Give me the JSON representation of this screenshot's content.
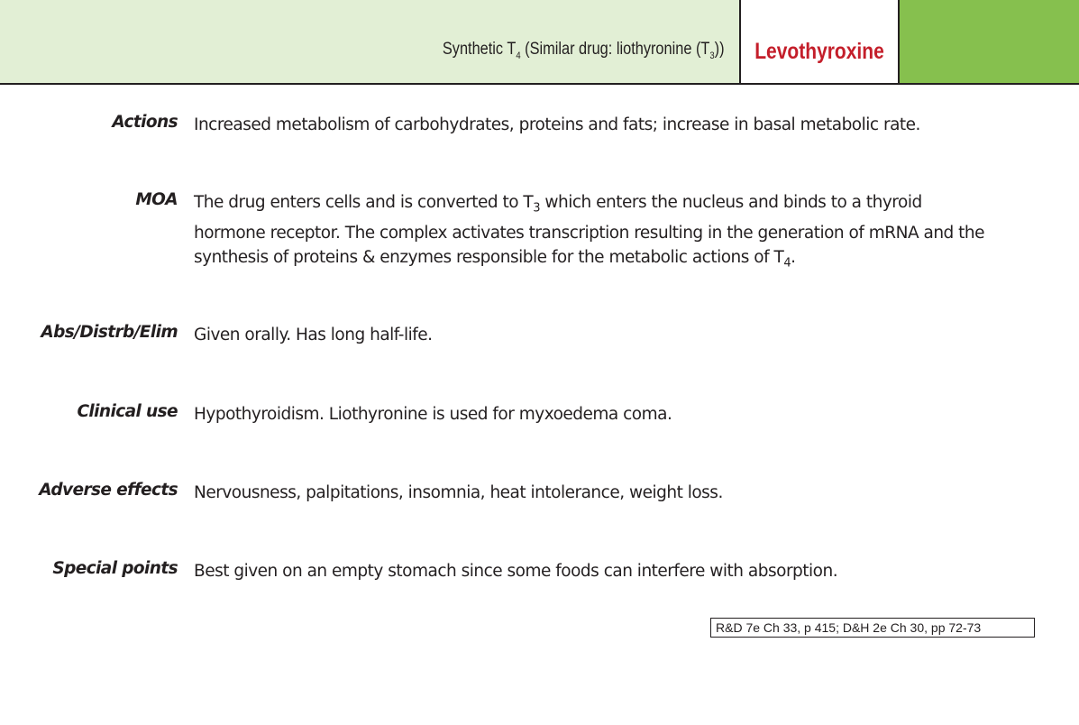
{
  "header": {
    "subtitle_pre": "Synthetic T",
    "subtitle_sub1": "4",
    "subtitle_mid": " (Similar drug: liothyronine (T",
    "subtitle_sub2": "3",
    "subtitle_post": "))",
    "drug_name": "Levothyroxine",
    "colors": {
      "header_bg": "#e2efd5",
      "tab_green": "#86c04e",
      "drug_name_red": "#c41e2a"
    }
  },
  "sections": {
    "actions": {
      "label": "Actions",
      "text": "Increased metabolism of carbohydrates, proteins and fats; increase in basal metabolic rate."
    },
    "moa": {
      "label": "MOA",
      "text_1": "The drug enters cells and is converted to T",
      "sub_1": "3",
      "text_2": " which enters the nucleus and binds to a thyroid hormone receptor. The complex activates transcription resulting in the generation of mRNA and the synthesis of proteins & enzymes responsible for the metabolic actions of T",
      "sub_2": "4",
      "text_3": "."
    },
    "abs": {
      "label": "Abs/Distrb/Elim",
      "text": "Given orally. Has long half-life."
    },
    "clinical": {
      "label": "Clinical use",
      "text": "Hypothyroidism. Liothyronine is used for myxoedema coma."
    },
    "adverse": {
      "label": "Adverse effects",
      "text": "Nervousness, palpitations, insomnia, heat intolerance, weight loss."
    },
    "special": {
      "label": "Special points",
      "text": "Best given on an empty stomach since some foods can interfere with absorption."
    }
  },
  "reference": "R&D 7e Ch 33, p 415; D&H 2e Ch 30, pp 72-73"
}
